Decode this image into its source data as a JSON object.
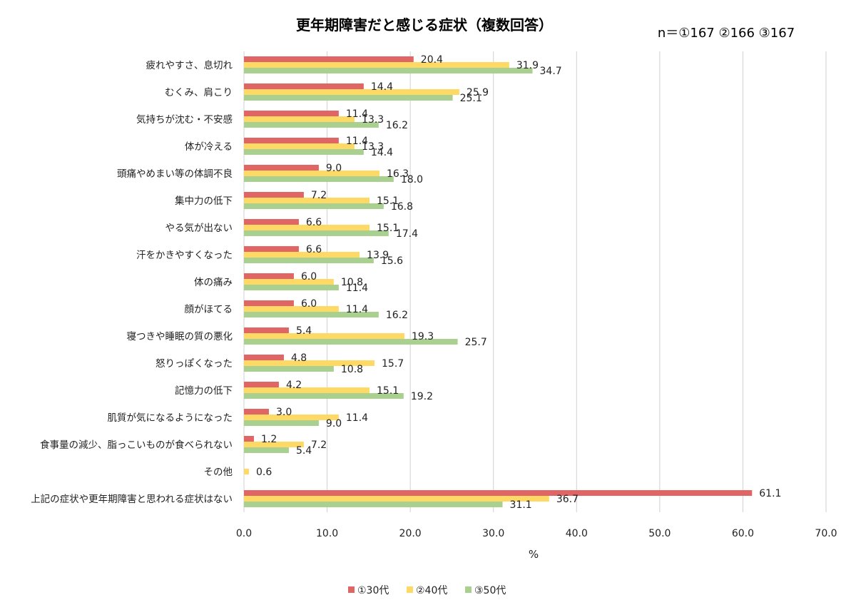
{
  "title": "更年期障害だと感じる症状（複数回答）",
  "sample_size": "n＝①167 ②166 ③167",
  "chart_data": {
    "type": "bar",
    "orientation": "horizontal",
    "title": "更年期障害だと感じる症状（複数回答）",
    "xlabel": "%",
    "ylabel": "",
    "xlim": [
      0,
      70
    ],
    "ticks": [
      "0.0",
      "10.0",
      "20.0",
      "30.0",
      "40.0",
      "50.0",
      "60.0",
      "70.0"
    ],
    "grid": true,
    "legend_position": "bottom",
    "categories": [
      "疲れやすさ、息切れ",
      "むくみ、肩こり",
      "気持ちが沈む・不安感",
      "体が冷える",
      "頭痛やめまい等の体調不良",
      "集中力の低下",
      "やる気が出ない",
      "汗をかきやすくなった",
      "体の痛み",
      "顔がほてる",
      "寝つきや睡眠の質の悪化",
      "怒りっぽくなった",
      "記憶力の低下",
      "肌質が気になるようになった",
      "食事量の減少、脂っこいものが食べられない",
      "その他",
      "上記の症状や更年期障害と思われる症状はない"
    ],
    "series": [
      {
        "name": "①30代",
        "color": "#e06666",
        "values": [
          20.4,
          14.4,
          11.4,
          11.4,
          9.0,
          7.2,
          6.6,
          6.6,
          6.0,
          6.0,
          5.4,
          4.8,
          4.2,
          3.0,
          1.2,
          0.0,
          61.1
        ],
        "labels": [
          "20.4",
          "14.4",
          "11.4",
          "11.4",
          "9.0",
          "7.2",
          "6.6",
          "6.6",
          "6.0",
          "6.0",
          "5.4",
          "4.8",
          "4.2",
          "3.0",
          "1.2",
          "",
          "61.1"
        ]
      },
      {
        "name": "②40代",
        "color": "#ffd966",
        "values": [
          31.9,
          25.9,
          13.3,
          13.3,
          16.3,
          15.1,
          15.1,
          13.9,
          10.8,
          11.4,
          19.3,
          15.7,
          15.1,
          11.4,
          7.2,
          0.6,
          36.7
        ],
        "labels": [
          "31.9",
          "25.9",
          "13.3",
          "13.3",
          "16.3",
          "15.1",
          "15.1",
          "13.9",
          "10.8",
          "11.4",
          "19.3",
          "15.7",
          "15.1",
          "11.4",
          "7.2",
          "0.6",
          "36.7"
        ]
      },
      {
        "name": "③50代",
        "color": "#a9d08e",
        "values": [
          34.7,
          25.1,
          16.2,
          14.4,
          18.0,
          16.8,
          17.4,
          15.6,
          11.4,
          16.2,
          25.7,
          10.8,
          19.2,
          9.0,
          5.4,
          0.0,
          31.1
        ],
        "labels": [
          "34.7",
          "25.1",
          "16.2",
          "14.4",
          "18.0",
          "16.8",
          "17.4",
          "15.6",
          "11.4",
          "16.2",
          "25.7",
          "10.8",
          "19.2",
          "9.0",
          "5.4",
          "",
          "31.1"
        ]
      }
    ]
  }
}
